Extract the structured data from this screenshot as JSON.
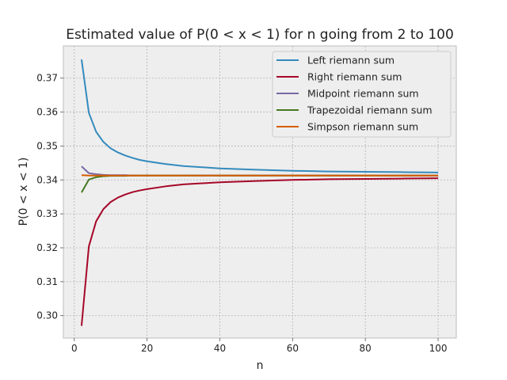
{
  "chart_data": {
    "type": "line",
    "title": "Estimated value of P(0 < x < 1) for n going from 2 to 100",
    "xlabel": "n",
    "ylabel": "P(0 < x < 1)",
    "xlim": [
      -3,
      105
    ],
    "ylim": [
      0.2934,
      0.3795
    ],
    "xticks": [
      0,
      20,
      40,
      60,
      80,
      100
    ],
    "yticks": [
      0.3,
      0.31,
      0.32,
      0.33,
      0.34,
      0.35,
      0.36,
      0.37
    ],
    "grid": true,
    "legend_position": "upper right",
    "x": [
      2,
      4,
      6,
      8,
      10,
      12,
      14,
      16,
      18,
      20,
      25,
      30,
      40,
      50,
      60,
      70,
      80,
      90,
      100
    ],
    "series": [
      {
        "name": "Left riemann sum",
        "color": "#348abd",
        "values": [
          0.3755,
          0.3598,
          0.3542,
          0.3512,
          0.3493,
          0.3481,
          0.3472,
          0.3465,
          0.3459,
          0.3455,
          0.3447,
          0.3441,
          0.3434,
          0.343,
          0.3427,
          0.3425,
          0.3424,
          0.3423,
          0.3422
        ]
      },
      {
        "name": "Right riemann sum",
        "color": "#a60628",
        "values": [
          0.297,
          0.3204,
          0.3278,
          0.3314,
          0.3335,
          0.3348,
          0.3357,
          0.3364,
          0.3369,
          0.3373,
          0.3381,
          0.3387,
          0.3393,
          0.3397,
          0.34,
          0.3402,
          0.3403,
          0.3404,
          0.3405
        ]
      },
      {
        "name": "Midpoint riemann sum",
        "color": "#7a68a6",
        "values": [
          0.344,
          0.342,
          0.3417,
          0.3415,
          0.3414,
          0.3414,
          0.3414,
          0.3413,
          0.3413,
          0.3413,
          0.3413,
          0.3413,
          0.3413,
          0.3413,
          0.3413,
          0.3413,
          0.3413,
          0.3413,
          0.3413
        ]
      },
      {
        "name": "Trapezoidal riemann sum",
        "color": "#467821",
        "values": [
          0.3363,
          0.3401,
          0.3408,
          0.3411,
          0.3412,
          0.3412,
          0.3412,
          0.3413,
          0.3413,
          0.3413,
          0.3413,
          0.3413,
          0.3413,
          0.3413,
          0.3413,
          0.3413,
          0.3413,
          0.3413,
          0.3413
        ]
      },
      {
        "name": "Simpson riemann sum",
        "color": "#d55e00",
        "values": [
          0.3414,
          0.3413,
          0.3413,
          0.3413,
          0.3413,
          0.3413,
          0.3413,
          0.3413,
          0.3413,
          0.3413,
          0.3413,
          0.3413,
          0.3413,
          0.3413,
          0.3413,
          0.3413,
          0.3413,
          0.3413,
          0.3413
        ]
      }
    ]
  }
}
